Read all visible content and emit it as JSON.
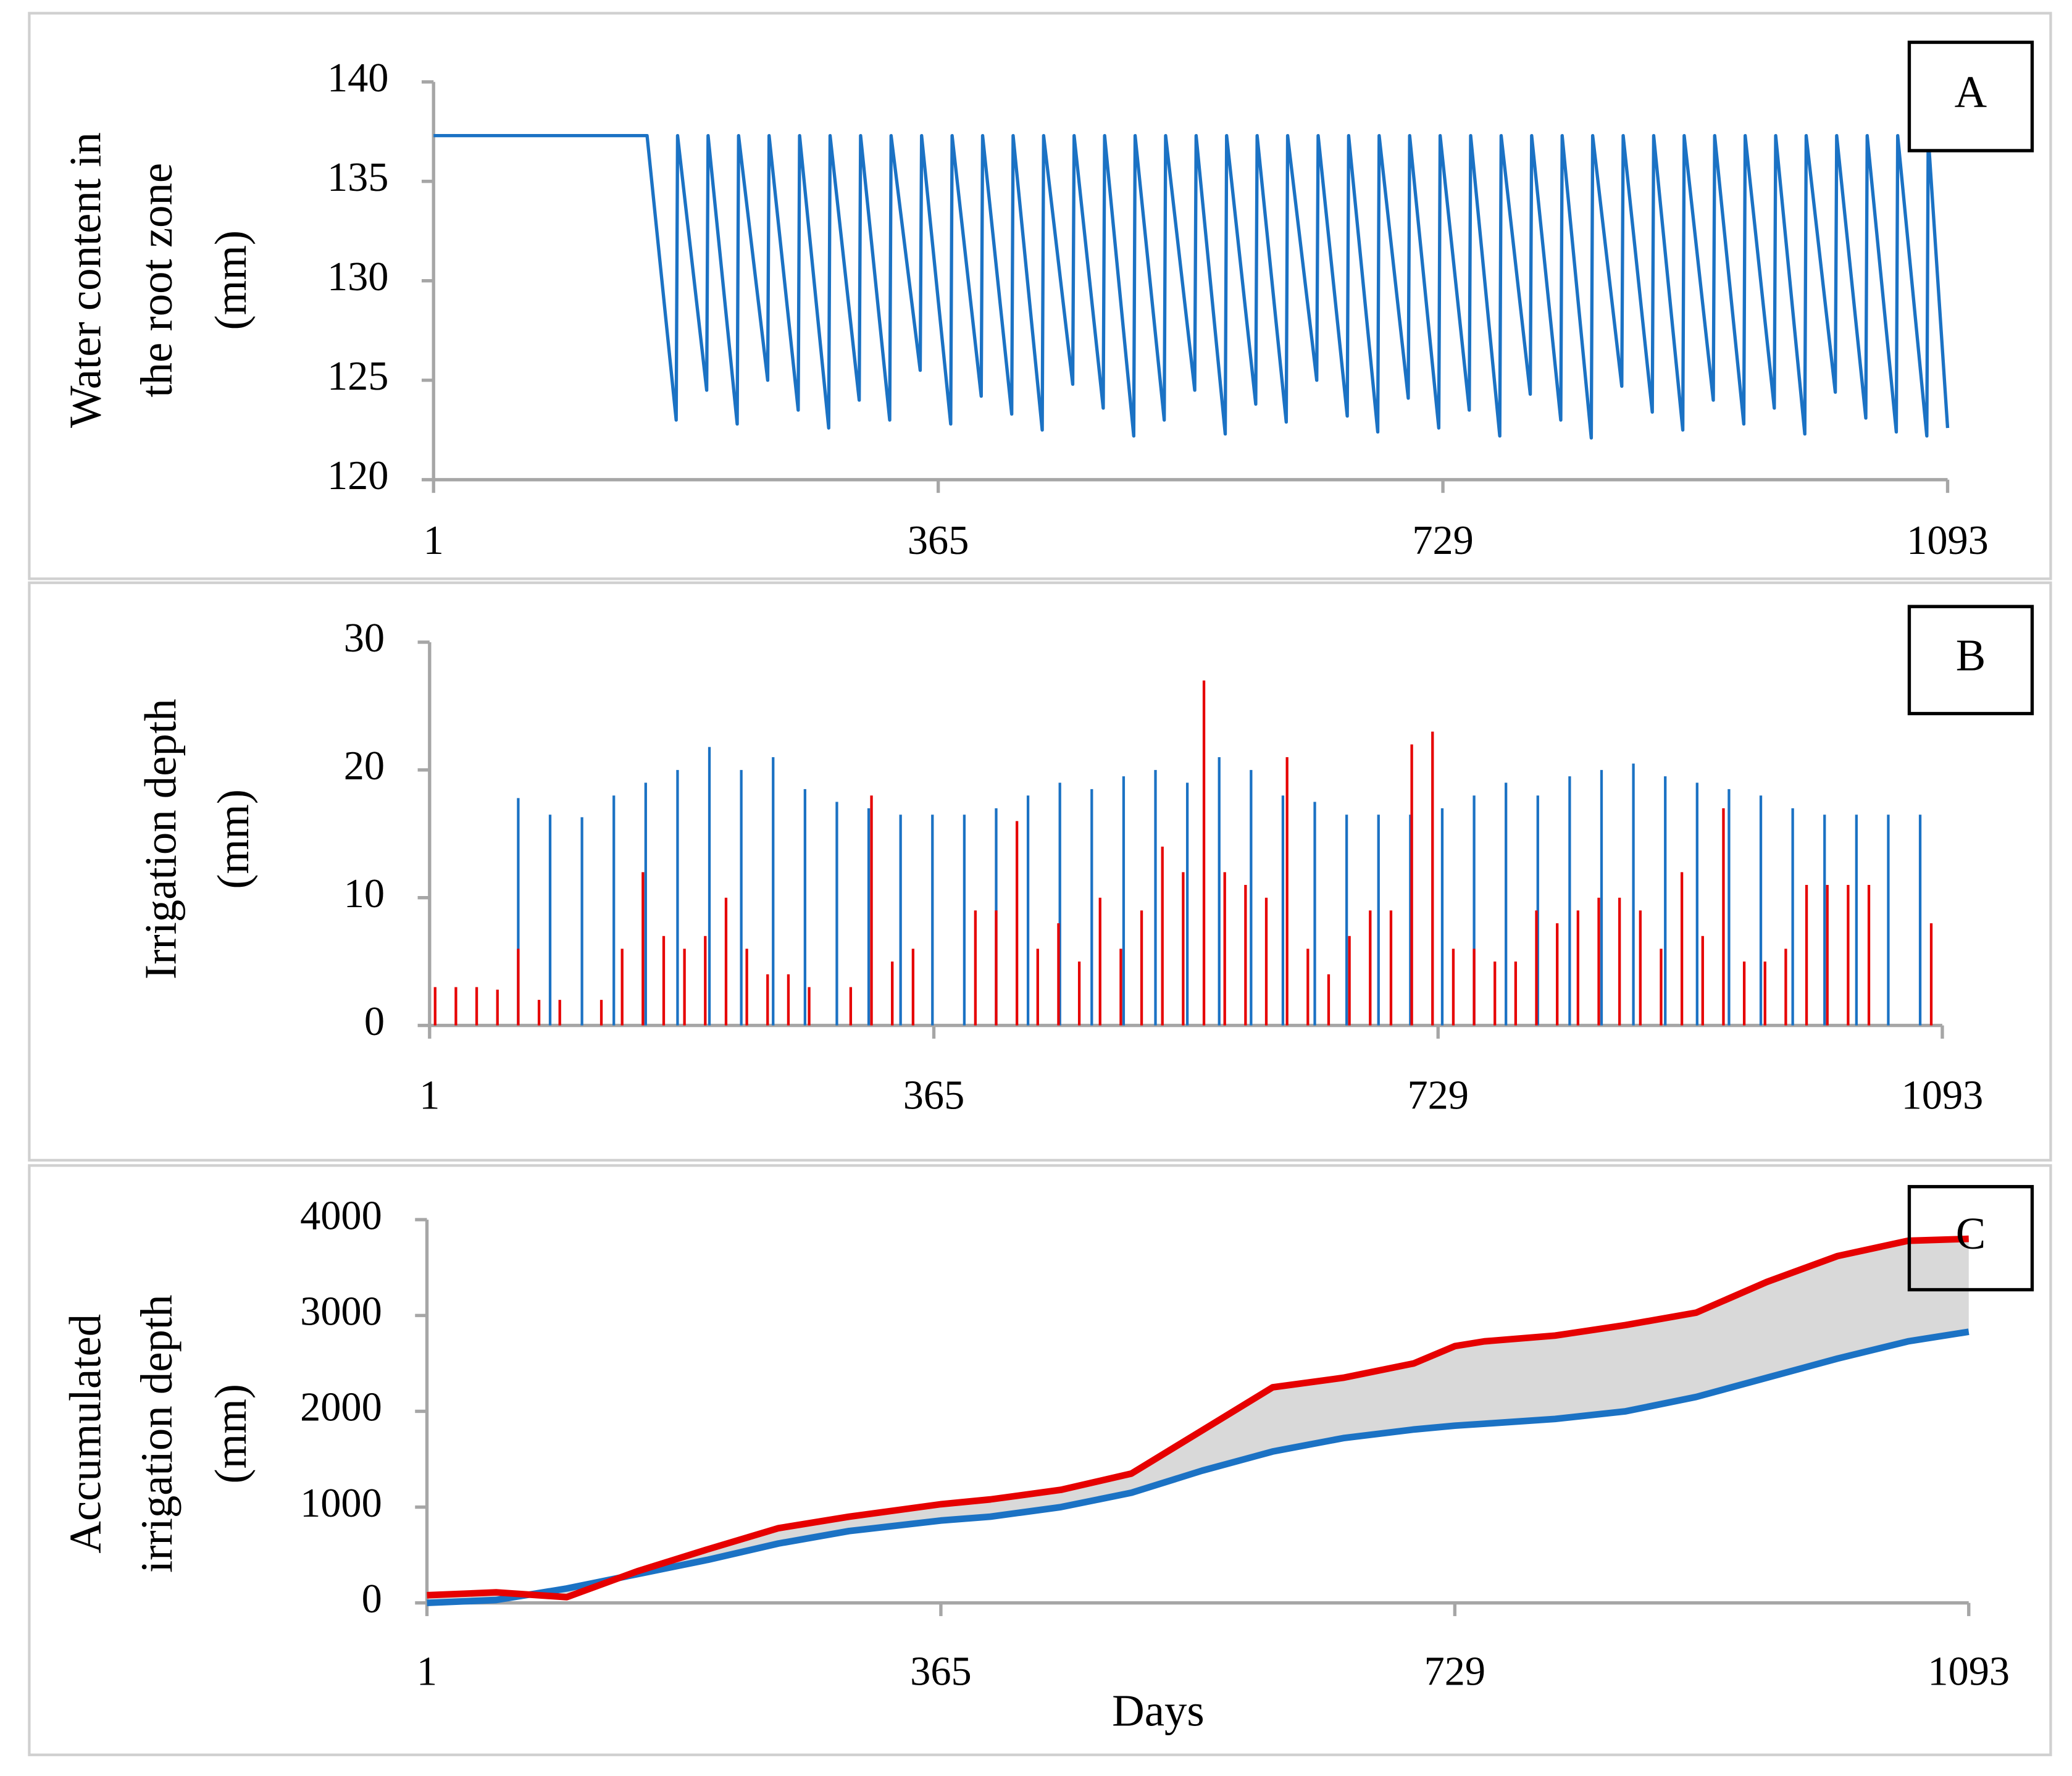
{
  "chart_data": [
    {
      "type": "line",
      "label": "A",
      "ylabel": [
        "Water content in",
        "the root zone",
        "(mm)"
      ],
      "xlim": [
        1,
        1093
      ],
      "xticks": [
        1,
        365,
        729,
        1093
      ],
      "ylim": [
        120,
        140
      ],
      "yticks": [
        120,
        125,
        130,
        135,
        140
      ],
      "series": [
        {
          "color": "#1b72c4",
          "x": [
            1,
            150,
            155,
            176,
            177,
            198,
            199,
            220,
            221,
            242,
            243,
            264,
            265,
            286,
            287,
            308,
            309,
            330,
            331,
            352,
            353,
            374,
            375,
            396,
            397,
            418,
            419,
            440,
            441,
            462,
            463,
            484,
            485,
            506,
            507,
            528,
            529,
            550,
            551,
            572,
            573,
            594,
            595,
            616,
            617,
            638,
            639,
            660,
            661,
            682,
            683,
            704,
            705,
            726,
            727,
            748,
            749,
            770,
            771,
            792,
            793,
            814,
            815,
            836,
            837,
            858,
            859,
            880,
            881,
            902,
            903,
            924,
            925,
            946,
            947,
            968,
            969,
            990,
            991,
            1012,
            1013,
            1034,
            1035,
            1056,
            1057,
            1078,
            1079,
            1093
          ],
          "values": [
            137.3,
            137.3,
            137.3,
            123,
            137.3,
            124.5,
            137.3,
            122.8,
            137.3,
            125,
            137.3,
            123.5,
            137.3,
            122.6,
            137.3,
            124,
            137.3,
            123,
            137.3,
            125.5,
            137.3,
            122.8,
            137.3,
            124.2,
            137.3,
            123.3,
            137.3,
            122.5,
            137.3,
            124.8,
            137.3,
            123.6,
            137.3,
            122.2,
            137.3,
            123,
            137.3,
            124.5,
            137.3,
            122.3,
            137.3,
            123.8,
            137.3,
            122.9,
            137.3,
            125,
            137.3,
            123.2,
            137.3,
            122.4,
            137.3,
            124.1,
            137.3,
            122.6,
            137.3,
            123.5,
            137.3,
            122.2,
            137.3,
            124.3,
            137.3,
            123,
            137.3,
            122.1,
            137.3,
            124.7,
            137.3,
            123.4,
            137.3,
            122.5,
            137.3,
            124,
            137.3,
            122.8,
            137.3,
            123.6,
            137.3,
            122.3,
            137.3,
            124.4,
            137.3,
            123.1,
            137.3,
            122.4,
            137.3,
            122.2,
            137.3,
            122.6
          ]
        }
      ]
    },
    {
      "type": "bar",
      "label": "B",
      "ylabel": [
        "Irrigation depth",
        "(mm)"
      ],
      "xlim": [
        1,
        1093
      ],
      "xticks": [
        1,
        365,
        729,
        1093
      ],
      "ylim": [
        0,
        30
      ],
      "yticks": [
        0,
        10,
        20,
        30
      ],
      "series": [
        {
          "color": "#1b72c4",
          "x": [
            65,
            88,
            111,
            134,
            157,
            180,
            203,
            226,
            249,
            272,
            295,
            318,
            341,
            364,
            387,
            410,
            433,
            456,
            479,
            502,
            525,
            548,
            571,
            594,
            617,
            640,
            663,
            686,
            709,
            732,
            755,
            778,
            801,
            824,
            847,
            870,
            893,
            916,
            939,
            962,
            985,
            1008,
            1031,
            1054,
            1077
          ],
          "values": [
            17.8,
            16.5,
            16.3,
            18,
            19,
            20,
            21.8,
            20,
            21,
            18.5,
            17.5,
            17,
            16.5,
            16.5,
            16.5,
            17,
            18,
            19,
            18.5,
            19.5,
            20,
            19,
            21,
            20,
            18,
            17.5,
            16.5,
            16.5,
            16.5,
            17,
            18,
            19,
            18,
            19.5,
            20,
            20.5,
            19.5,
            19,
            18.5,
            18,
            17,
            16.5,
            16.5,
            16.5,
            16.5
          ]
        },
        {
          "color": "#e60000",
          "x": [
            5,
            20,
            35,
            50,
            65,
            80,
            95,
            110,
            125,
            140,
            155,
            170,
            185,
            200,
            215,
            230,
            245,
            260,
            275,
            290,
            305,
            320,
            335,
            350,
            365,
            380,
            395,
            410,
            425,
            440,
            455,
            470,
            485,
            500,
            515,
            530,
            545,
            560,
            575,
            590,
            605,
            620,
            635,
            650,
            665,
            680,
            695,
            710,
            725,
            740,
            755,
            770,
            785,
            800,
            815,
            830,
            845,
            860,
            875,
            890,
            905,
            920,
            935,
            950,
            965,
            980,
            995,
            1010,
            1025,
            1040,
            1055,
            1070,
            1085
          ],
          "values": [
            3,
            3,
            3,
            2.8,
            6,
            2,
            2,
            0,
            2,
            6,
            12,
            7,
            6,
            7,
            10,
            6,
            4,
            4,
            3,
            0,
            3,
            18,
            5,
            6,
            0,
            0,
            9,
            9,
            16,
            6,
            8,
            5,
            10,
            6,
            9,
            14,
            12,
            27,
            12,
            11,
            10,
            21,
            6,
            4,
            7,
            9,
            9,
            22,
            23,
            6,
            6,
            5,
            5,
            9,
            8,
            9,
            10,
            10,
            9,
            6,
            12,
            7,
            17,
            5,
            5,
            6,
            11,
            11,
            11,
            11,
            0,
            0,
            8
          ]
        }
      ]
    },
    {
      "type": "line",
      "label": "C",
      "ylabel": [
        "Accumulated",
        "irrigation depth",
        "(mm)"
      ],
      "xlabel": "Days",
      "fill_between": "#d9d9d9",
      "xlim": [
        1,
        1093
      ],
      "xticks": [
        1,
        365,
        729,
        1093
      ],
      "ylim": [
        0,
        4000
      ],
      "yticks": [
        0,
        1000,
        2000,
        3000,
        4000
      ],
      "series": [
        {
          "color": "#1b72c4",
          "x": [
            1,
            50,
            100,
            150,
            200,
            250,
            300,
            365,
            400,
            450,
            500,
            550,
            600,
            650,
            700,
            729,
            750,
            800,
            850,
            900,
            950,
            1000,
            1050,
            1093
          ],
          "values": [
            0,
            30,
            150,
            300,
            450,
            620,
            750,
            860,
            900,
            1000,
            1150,
            1380,
            1580,
            1720,
            1810,
            1850,
            1870,
            1920,
            2000,
            2150,
            2350,
            2550,
            2730,
            2830
          ]
        },
        {
          "color": "#e60000",
          "x": [
            1,
            50,
            100,
            150,
            200,
            250,
            300,
            365,
            400,
            450,
            500,
            550,
            600,
            650,
            700,
            729,
            750,
            800,
            850,
            900,
            950,
            1000,
            1050,
            1093
          ],
          "values": [
            80,
            110,
            60,
            330,
            560,
            780,
            900,
            1030,
            1080,
            1180,
            1350,
            1800,
            2250,
            2350,
            2500,
            2680,
            2730,
            2790,
            2900,
            3030,
            3350,
            3620,
            3780,
            3800
          ]
        }
      ]
    }
  ]
}
